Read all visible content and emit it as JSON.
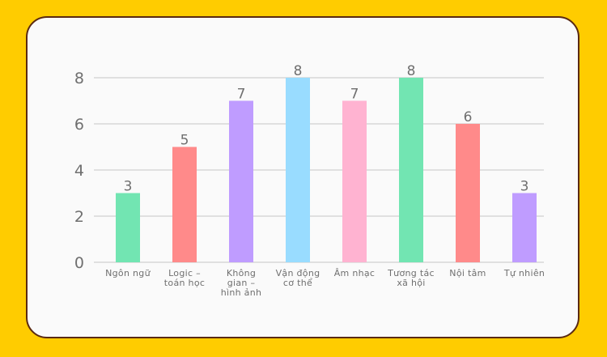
{
  "chart_data": {
    "type": "bar",
    "title": "",
    "xlabel": "",
    "ylabel": "",
    "ylim": [
      0,
      8
    ],
    "yticks": [
      0,
      2,
      4,
      6,
      8
    ],
    "grid": true,
    "categories": [
      [
        "Ngôn ngữ"
      ],
      [
        "Logic –",
        "toán học"
      ],
      [
        "Không",
        "gian –",
        "hình ảnh"
      ],
      [
        "Vận động",
        "cơ thể"
      ],
      [
        "Âm nhạc"
      ],
      [
        "Tương tác",
        "xã hội"
      ],
      [
        "Nội tâm"
      ],
      [
        "Tự nhiên"
      ]
    ],
    "values": [
      3,
      5,
      7,
      8,
      7,
      8,
      6,
      3
    ],
    "colors": [
      "#72e5b2",
      "#ff8a8a",
      "#bf9cff",
      "#99dcff",
      "#ffb3d1",
      "#72e5b2",
      "#ff8a8a",
      "#bf9cff"
    ]
  },
  "colors": {
    "background": "#ffcc00",
    "card": "#fafafa",
    "card_border": "#5a2a12",
    "grid": "#e0e0e0",
    "text": "#6f6f6f"
  }
}
